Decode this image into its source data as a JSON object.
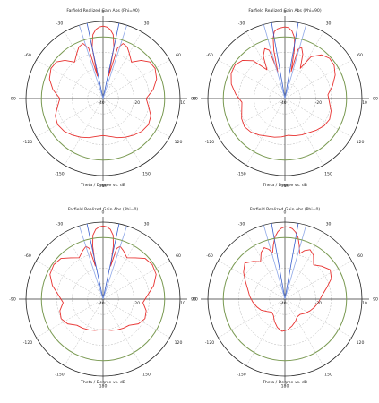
{
  "chart_data": [
    {
      "type": "polar",
      "title": "Farfield Realized Gain Abs (Phi=90)",
      "xlabel": "Theta / Degree vs. dB",
      "r_range": [
        -40,
        10
      ],
      "r_ticks": [
        -40,
        -20,
        10
      ],
      "r_tick_labels": [
        "-40",
        "-20",
        "10"
      ],
      "theta_tick_labels": [
        "0",
        "30",
        "60",
        "90",
        "120",
        "150",
        "180",
        "-150",
        "-120",
        "-90",
        "-60",
        "-30"
      ],
      "series": [
        {
          "role": "realized-gain",
          "color": "#e8312f",
          "theta": [
            0,
            3,
            6,
            9,
            12,
            14,
            16,
            20,
            25,
            30,
            38,
            45,
            52,
            60,
            70,
            80,
            90,
            100,
            110,
            120,
            130,
            140,
            150,
            160,
            170,
            180,
            190,
            200,
            210,
            220,
            230,
            240,
            250,
            260,
            270,
            280,
            290,
            300,
            308,
            315,
            322,
            330,
            335,
            340,
            344,
            346,
            348,
            351,
            354,
            357
          ],
          "r": [
            7,
            6.5,
            5,
            2,
            -6,
            -25,
            -6,
            -2,
            -3,
            -6,
            -10,
            -5,
            -1.5,
            -1,
            -3,
            -7,
            -12,
            -10,
            -7,
            -6,
            -7,
            -9,
            -11,
            -13,
            -15,
            -16,
            -15,
            -13,
            -11,
            -9,
            -7,
            -6,
            -7,
            -10,
            -12,
            -7,
            -3,
            -1,
            -1.5,
            -5,
            -10,
            -6,
            -3,
            -2,
            -6,
            -25,
            -6,
            2,
            5,
            6.5
          ]
        },
        {
          "role": "beam-direction",
          "color": "#3a5fcd",
          "theta": [
            -12,
            12
          ],
          "r": [
            10,
            10
          ]
        },
        {
          "role": "3 dB beamwidth",
          "color": "#8fa8e8",
          "theta": [
            -18,
            18
          ],
          "r": [
            10,
            10
          ]
        },
        {
          "role": "reference level",
          "color": "#7a9a52",
          "theta": [
            0,
            360
          ],
          "r": [
            0,
            0
          ]
        }
      ]
    },
    {
      "type": "polar",
      "title": "Farfield Realized Gain Abs (Phi=90)",
      "xlabel": "Theta / Degree vs. dB",
      "r_range": [
        -40,
        10
      ],
      "r_ticks": [
        -40,
        -20,
        10
      ],
      "r_tick_labels": [
        "-40",
        "-20",
        "10"
      ],
      "theta_tick_labels": [
        "0",
        "30",
        "60",
        "90",
        "120",
        "150",
        "180",
        "-150",
        "-120",
        "-90",
        "-60",
        "-30"
      ],
      "series": [
        {
          "role": "realized-gain",
          "color": "#e8312f",
          "theta": [
            0,
            3,
            6,
            9,
            11,
            13,
            15,
            18,
            22,
            27,
            32,
            40,
            48,
            56,
            65,
            75,
            85,
            95,
            105,
            115,
            125,
            135,
            145,
            155,
            165,
            175,
            185,
            195,
            205,
            215,
            225,
            235,
            245,
            255,
            265,
            275,
            285,
            295,
            304,
            312,
            320,
            328,
            333,
            338,
            342,
            345,
            347,
            349,
            351,
            354,
            357
          ],
          "r": [
            6.5,
            6,
            4,
            0,
            -8,
            -22,
            -7,
            -5,
            -9,
            -18,
            -8,
            -3,
            -1,
            -1.5,
            -4,
            -8,
            -12,
            -11,
            -9,
            -8,
            -9,
            -11,
            -13,
            -14,
            -15,
            -16,
            -15,
            -14,
            -13,
            -11,
            -9,
            -8,
            -9,
            -11,
            -12,
            -8,
            -4,
            -1.5,
            -1,
            -3,
            -8,
            -18,
            -9,
            -5,
            -7,
            -22,
            -8,
            0,
            4,
            5.5,
            6
          ]
        },
        {
          "role": "beam-direction",
          "color": "#3a5fcd",
          "theta": [
            -10,
            10
          ],
          "r": [
            10,
            10
          ]
        },
        {
          "role": "3 dB beamwidth",
          "color": "#8fa8e8",
          "theta": [
            -16,
            16
          ],
          "r": [
            10,
            10
          ]
        },
        {
          "role": "reference level",
          "color": "#7a9a52",
          "theta": [
            0,
            360
          ],
          "r": [
            0,
            0
          ]
        }
      ]
    },
    {
      "type": "polar",
      "title": "Farfield Realized Gain Abs (Phi=0)",
      "xlabel": "Theta / Degree vs. dB",
      "r_range": [
        -40,
        10
      ],
      "r_ticks": [
        -40,
        -20,
        10
      ],
      "r_tick_labels": [
        "-40",
        "-20",
        "10"
      ],
      "theta_tick_labels": [
        "0",
        "30",
        "60",
        "90",
        "120",
        "150",
        "180",
        "-150",
        "-120",
        "-90",
        "-60",
        "-30"
      ],
      "series": [
        {
          "role": "realized-gain",
          "color": "#e8312f",
          "theta": [
            0,
            3,
            6,
            9,
            11,
            13,
            15,
            18,
            23,
            30,
            38,
            46,
            55,
            65,
            75,
            85,
            95,
            105,
            115,
            125,
            135,
            145,
            155,
            165,
            175,
            185,
            195,
            205,
            215,
            225,
            235,
            245,
            255,
            265,
            275,
            285,
            295,
            305,
            314,
            322,
            330,
            337,
            342,
            345,
            347,
            349,
            351,
            354,
            357
          ],
          "r": [
            7.5,
            7,
            5.5,
            2,
            -5,
            -18,
            -6,
            -4,
            -6,
            -9,
            -6,
            -2,
            -1,
            -2,
            -6,
            -11,
            -14,
            -11,
            -10,
            -12,
            -16,
            -17,
            -18,
            -19,
            -20,
            -20,
            -19,
            -18,
            -17,
            -16,
            -12,
            -10,
            -11,
            -14,
            -11,
            -6,
            -2,
            -1,
            -2,
            -6,
            -9,
            -6,
            -4,
            -6,
            -18,
            -5,
            2,
            5.5,
            7
          ]
        },
        {
          "role": "beam-direction",
          "color": "#3a5fcd",
          "theta": [
            -12,
            12
          ],
          "r": [
            10,
            10
          ]
        },
        {
          "role": "3 dB beamwidth",
          "color": "#8fa8e8",
          "theta": [
            -18,
            18
          ],
          "r": [
            10,
            10
          ]
        },
        {
          "role": "reference level",
          "color": "#7a9a52",
          "theta": [
            0,
            360
          ],
          "r": [
            0,
            0
          ]
        }
      ]
    },
    {
      "type": "polar",
      "title": "Farfield Realized Gain Abs (Phi=0)",
      "xlabel": "Theta / Degree vs. dB",
      "r_range": [
        -40,
        10
      ],
      "r_ticks": [
        -40,
        -20,
        10
      ],
      "r_tick_labels": [
        "-40",
        "-20",
        "10"
      ],
      "theta_tick_labels": [
        "0",
        "30",
        "60",
        "90",
        "120",
        "150",
        "180",
        "-150",
        "-120",
        "-90",
        "-60",
        "-30"
      ],
      "series": [
        {
          "role": "realized-gain",
          "color": "#e8312f",
          "theta": [
            0,
            3,
            6,
            9,
            12,
            15,
            18,
            22,
            27,
            33,
            40,
            48,
            57,
            66,
            75,
            85,
            95,
            105,
            115,
            125,
            135,
            145,
            155,
            165,
            175,
            185,
            195,
            205,
            215,
            225,
            235,
            245,
            255,
            265,
            275,
            285,
            294,
            303,
            312,
            320,
            327,
            333,
            338,
            342,
            345,
            348,
            351,
            354,
            357
          ],
          "r": [
            7,
            6.8,
            6,
            4,
            1,
            -4,
            -9,
            -6,
            -4,
            -6,
            -11,
            -8,
            -5,
            -7,
            -12,
            -16,
            -18,
            -20,
            -22,
            -24,
            -26,
            -26,
            -24,
            -22,
            -20,
            -19,
            -21,
            -24,
            -27,
            -28,
            -26,
            -23,
            -21,
            -19,
            -17,
            -15,
            -12,
            -8,
            -5,
            -8,
            -11,
            -6,
            -4,
            -6,
            -9,
            -4,
            1,
            4,
            6
          ]
        },
        {
          "role": "beam-direction",
          "color": "#3a5fcd",
          "theta": [
            -10,
            10
          ],
          "r": [
            10,
            10
          ]
        },
        {
          "role": "3 dB beamwidth",
          "color": "#8fa8e8",
          "theta": [
            -16,
            16
          ],
          "r": [
            10,
            10
          ]
        },
        {
          "role": "reference level",
          "color": "#7a9a52",
          "theta": [
            0,
            360
          ],
          "r": [
            0,
            0
          ]
        }
      ]
    }
  ]
}
